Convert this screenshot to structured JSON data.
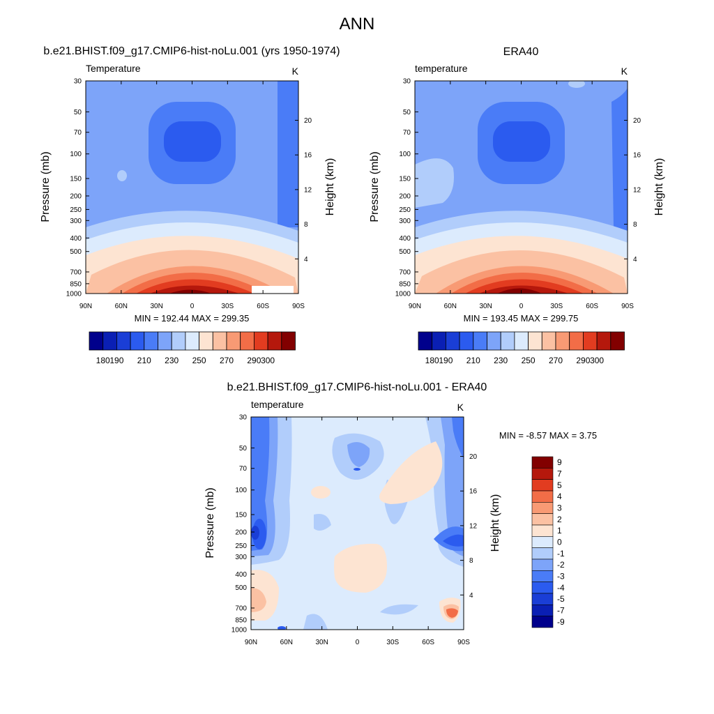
{
  "figure": {
    "title": "ANN"
  },
  "panels": [
    {
      "title": "b.e21.BHIST.f09_g17.CMIP6-hist-noLu.001 (yrs 1950-1974)",
      "variable": "Temperature",
      "units": "K",
      "min_max": "MIN = 192.44  MAX = 299.35"
    },
    {
      "title": "ERA40",
      "variable": "temperature",
      "units": "K",
      "min_max": "MIN = 193.45  MAX = 299.75"
    },
    {
      "title": "b.e21.BHIST.f09_g17.CMIP6-hist-noLu.001 - ERA40",
      "variable": "temperature",
      "units": "K",
      "min_max": "MIN =  -8.57  MAX =   3.75"
    }
  ],
  "chart_data": [
    {
      "type": "heatmap",
      "name": "model-temperature",
      "x": [
        "90N",
        "60N",
        "30N",
        "0",
        "30S",
        "60S",
        "90S"
      ],
      "pressure_levels": [
        30,
        50,
        70,
        100,
        150,
        200,
        250,
        300,
        400,
        500,
        700,
        850,
        1000
      ],
      "height_km_ticks": [
        4,
        8,
        12,
        16,
        20
      ],
      "xlabel": "",
      "ylabel": "Pressure (mb)",
      "ylabel_right": "Height (km)",
      "min": 192.44,
      "max": 299.35,
      "colorbar": {
        "levels": [
          180,
          190,
          200,
          210,
          220,
          230,
          240,
          250,
          260,
          270,
          280,
          290,
          300
        ],
        "labels": [
          "180",
          "190",
          "210",
          "230",
          "250",
          "270",
          "290",
          "300"
        ],
        "colors": [
          "#00008c",
          "#0a1fb4",
          "#1a3ed6",
          "#2b5bef",
          "#4a7cf7",
          "#7da4f9",
          "#b1cdfb",
          "#dcebfd",
          "#fde4d2",
          "#fbc1a3",
          "#f89a74",
          "#f26d47",
          "#e23c20",
          "#b5180c",
          "#820000"
        ]
      }
    },
    {
      "type": "heatmap",
      "name": "era40-temperature",
      "x": [
        "90N",
        "60N",
        "30N",
        "0",
        "30S",
        "60S",
        "90S"
      ],
      "pressure_levels": [
        30,
        50,
        70,
        100,
        150,
        200,
        250,
        300,
        400,
        500,
        700,
        850,
        1000
      ],
      "height_km_ticks": [
        4,
        8,
        12,
        16,
        20
      ],
      "xlabel": "",
      "ylabel": "Pressure (mb)",
      "ylabel_right": "Height (km)",
      "min": 193.45,
      "max": 299.75,
      "colorbar": {
        "levels": [
          180,
          190,
          200,
          210,
          220,
          230,
          240,
          250,
          260,
          270,
          280,
          290,
          300
        ],
        "labels": [
          "180",
          "190",
          "210",
          "230",
          "250",
          "270",
          "290",
          "300"
        ],
        "colors": [
          "#00008c",
          "#0a1fb4",
          "#1a3ed6",
          "#2b5bef",
          "#4a7cf7",
          "#7da4f9",
          "#b1cdfb",
          "#dcebfd",
          "#fde4d2",
          "#fbc1a3",
          "#f89a74",
          "#f26d47",
          "#e23c20",
          "#b5180c",
          "#820000"
        ]
      }
    },
    {
      "type": "heatmap",
      "name": "difference",
      "x": [
        "90N",
        "60N",
        "30N",
        "0",
        "30S",
        "60S",
        "90S"
      ],
      "pressure_levels": [
        30,
        50,
        70,
        100,
        150,
        200,
        250,
        300,
        400,
        500,
        700,
        850,
        1000
      ],
      "height_km_ticks": [
        4,
        8,
        12,
        16,
        20
      ],
      "xlabel": "",
      "ylabel": "Pressure (mb)",
      "ylabel_right": "Height (km)",
      "min": -8.57,
      "max": 3.75,
      "colorbar": {
        "labels": [
          "9",
          "7",
          "5",
          "4",
          "3",
          "2",
          "1",
          "0",
          "-1",
          "-2",
          "-3",
          "-4",
          "-5",
          "-7",
          "-9"
        ],
        "colors": [
          "#820000",
          "#b5180c",
          "#e23c20",
          "#f26d47",
          "#f89a74",
          "#fbc1a3",
          "#fde4d2",
          "#dcebfd",
          "#b1cdfb",
          "#7da4f9",
          "#4a7cf7",
          "#2b5bef",
          "#1a3ed6",
          "#0a1fb4",
          "#00008c"
        ]
      }
    }
  ]
}
